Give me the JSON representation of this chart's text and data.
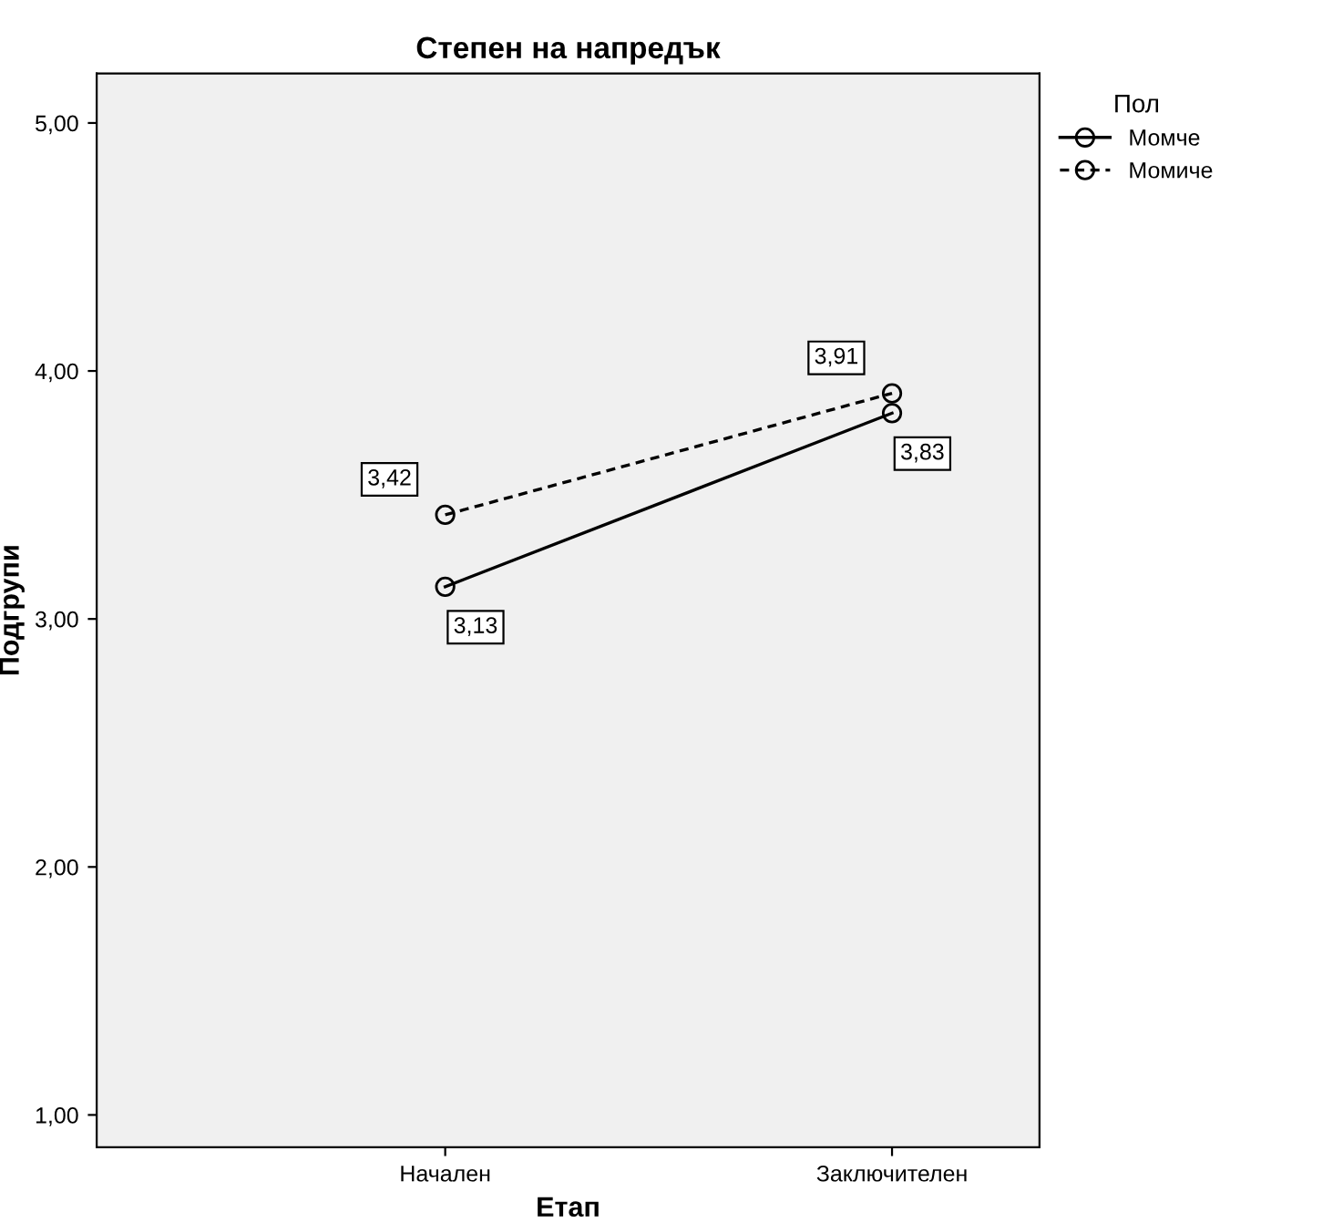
{
  "chart_data": {
    "type": "line",
    "title": "Степен на напредък",
    "xlabel": "Етап",
    "ylabel": "Подгрупи",
    "legend_title": "Пол",
    "categories": [
      "Начален",
      "Заключителен"
    ],
    "series": [
      {
        "name": "Момче",
        "color": "#000000",
        "line_style": "solid",
        "values": [
          3.13,
          3.83
        ],
        "value_labels": [
          "3,13",
          "3,83"
        ]
      },
      {
        "name": "Момиче",
        "color": "#000000",
        "line_style": "dashed",
        "values": [
          3.42,
          3.91
        ],
        "value_labels": [
          "3,42",
          "3,91"
        ]
      }
    ],
    "ylim": [
      0.87,
      5.2
    ],
    "yticks": [
      {
        "value": 1,
        "label": "1,00"
      },
      {
        "value": 2,
        "label": "2,00"
      },
      {
        "value": 3,
        "label": "3,00"
      },
      {
        "value": 4,
        "label": "4,00"
      },
      {
        "value": 5,
        "label": "5,00"
      }
    ],
    "marker": "circle",
    "grid": false,
    "legend": "top right"
  }
}
